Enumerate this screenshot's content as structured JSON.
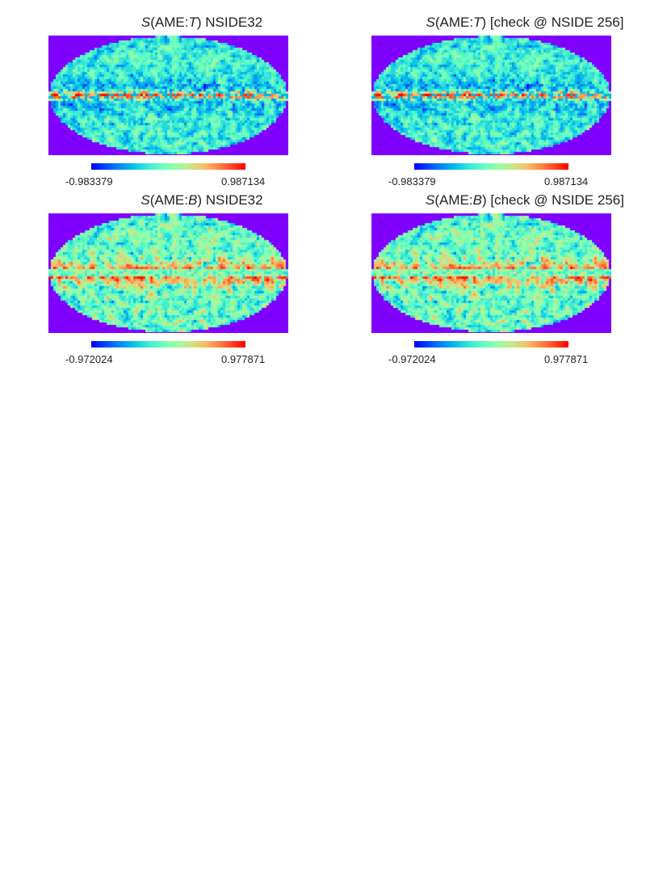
{
  "chart_data": [
    {
      "type": "heatmap",
      "title": {
        "fn": "S",
        "open": "(AME:",
        "qty": "T",
        "close": ")",
        "suffix": " NSIDE32"
      },
      "colorbar": {
        "min": "-0.983379",
        "max": "0.987134"
      },
      "colormap": "rainbow",
      "projection": "mollweide",
      "pattern": "T"
    },
    {
      "type": "heatmap",
      "title": {
        "fn": "S",
        "open": "(AME:",
        "qty": "T",
        "close": ")",
        "suffix": " [check @ NSIDE 256]"
      },
      "colorbar": {
        "min": "-0.983379",
        "max": "0.987134"
      },
      "colormap": "rainbow",
      "projection": "mollweide",
      "pattern": "T"
    },
    {
      "type": "heatmap",
      "title": {
        "fn": "S",
        "open": "(AME:",
        "qty": "B",
        "close": ")",
        "suffix": " NSIDE32"
      },
      "colorbar": {
        "min": "-0.972024",
        "max": "0.977871"
      },
      "colormap": "rainbow",
      "projection": "mollweide",
      "pattern": "B"
    },
    {
      "type": "heatmap",
      "title": {
        "fn": "S",
        "open": "(AME:",
        "qty": "B",
        "close": ")",
        "suffix": " [check @ NSIDE 256]"
      },
      "colorbar": {
        "min": "-0.972024",
        "max": "0.977871"
      },
      "colormap": "rainbow",
      "projection": "mollweide",
      "pattern": "B"
    }
  ],
  "colors": {
    "background_outside_map": "#7f00ff",
    "low": "#7f00ff",
    "mid": "#80ffb4",
    "high": "#ff0000"
  }
}
